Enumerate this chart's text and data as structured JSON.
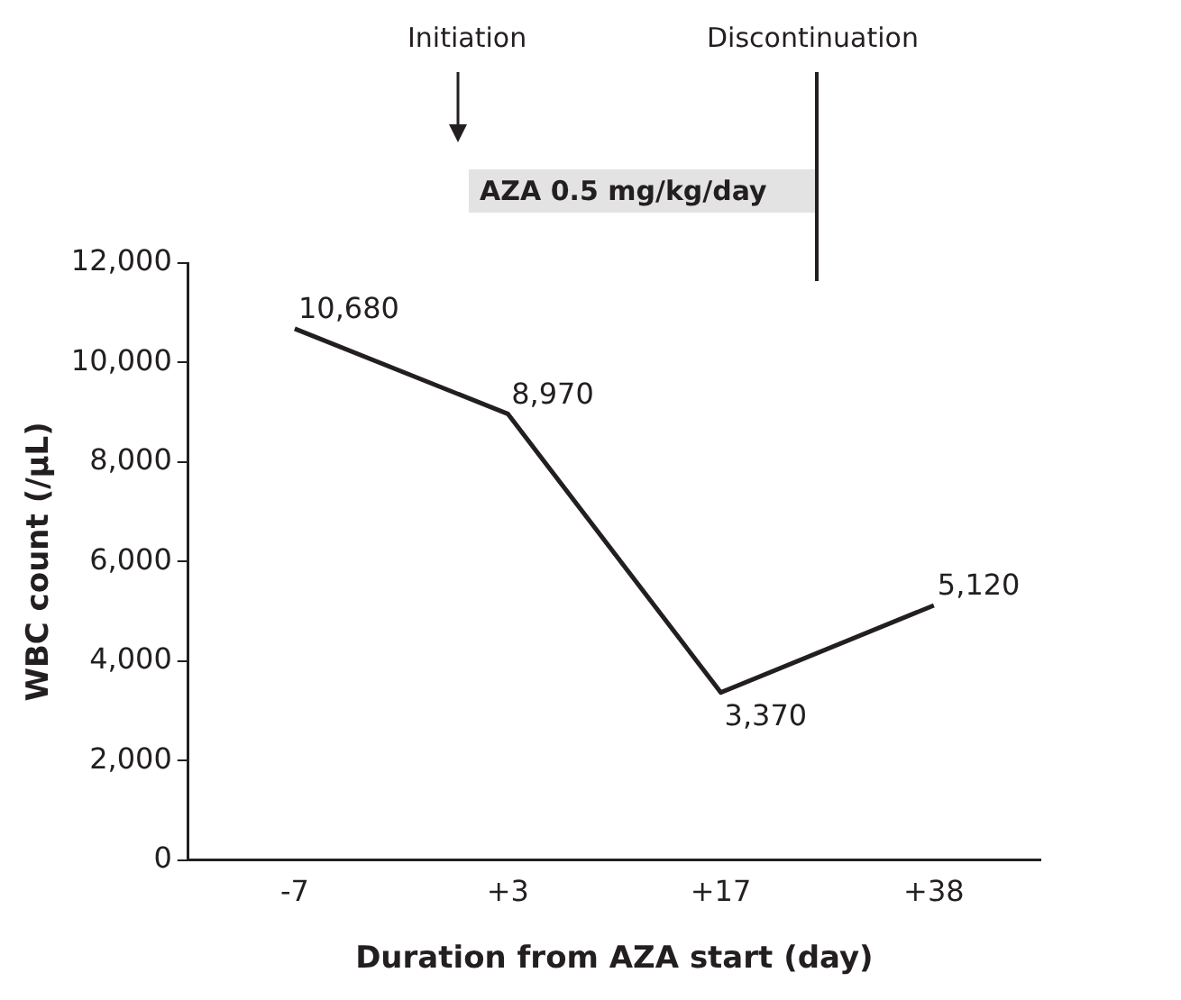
{
  "chart_data": {
    "type": "line",
    "xlabel": "Duration from AZA start (day)",
    "ylabel": "WBC count (/µL)",
    "categories": [
      "-7",
      "+3",
      "+17",
      "+38"
    ],
    "series": [
      {
        "color": "#231f20",
        "values": [
          10680,
          8970,
          3370,
          5120
        ],
        "value_labels": [
          "10,680",
          "8,970",
          "3,370",
          "5,120"
        ]
      }
    ],
    "ylim": [
      0,
      12000
    ],
    "yticks": [
      0,
      {
        "value": 2000,
        "label": "2,000"
      },
      {
        "value": 4000,
        "label": "4,000"
      },
      {
        "value": 6000,
        "label": "6,000"
      },
      {
        "value": 8000,
        "label": "8,000"
      },
      {
        "value": 10000,
        "label": "10,000"
      },
      {
        "value": 12000,
        "label": "12,000"
      }
    ],
    "annotations": [
      "Initiation",
      "Discontinuation",
      "AZA 0.5 mg/kg/day"
    ],
    "grid": false,
    "legend": false,
    "marker": "none",
    "line_style": "solid"
  }
}
